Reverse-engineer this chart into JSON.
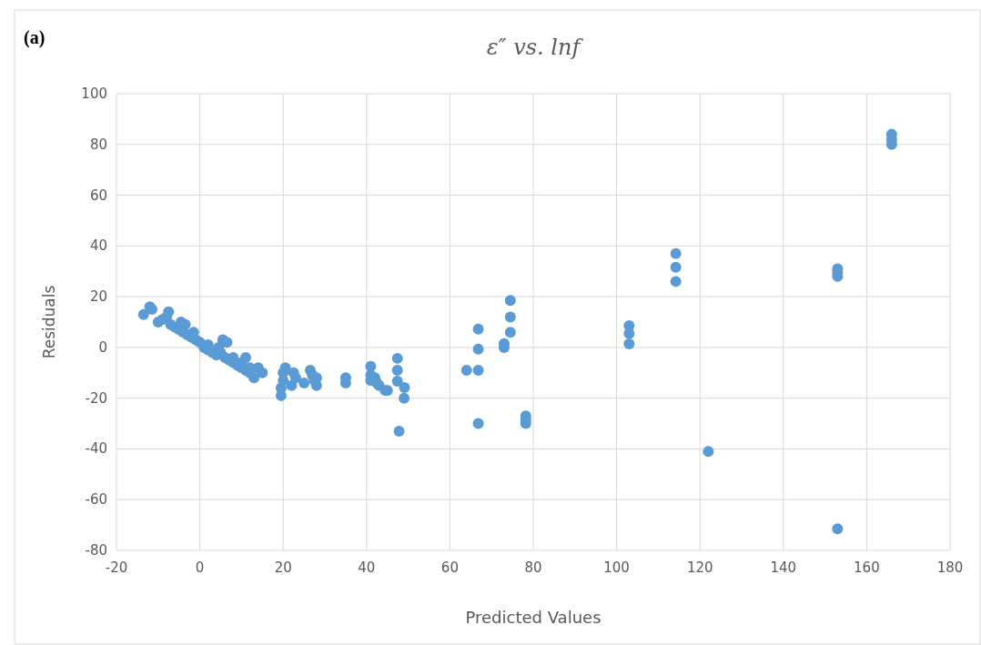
{
  "chart_data": {
    "type": "scatter",
    "title": "ε″ vs. lnf",
    "xlabel": "Predicted Values",
    "ylabel": "Residuals",
    "annotations": [
      "(a)"
    ],
    "xlim": [
      -20,
      180
    ],
    "xticks": [
      -20,
      0,
      20,
      40,
      60,
      80,
      100,
      120,
      140,
      160,
      180
    ],
    "ylim": [
      -80,
      100
    ],
    "yticks": [
      -80,
      -60,
      -40,
      -20,
      0,
      20,
      40,
      60,
      80,
      100
    ],
    "grid": true,
    "marker": "circle",
    "series": [
      {
        "color": "#5b9bd5",
        "x": [
          -13.5,
          -12,
          -11.5,
          -10,
          -9,
          -8,
          -7.5,
          -7,
          -6,
          -5,
          -4.5,
          -4,
          -3.5,
          -3,
          -2,
          -1.5,
          -1,
          0,
          1,
          2,
          2,
          3,
          4,
          4.5,
          5,
          5.5,
          6,
          6.5,
          7,
          8,
          8,
          9,
          10,
          10,
          11,
          11,
          12,
          12,
          13,
          14,
          15,
          19.5,
          19.5,
          20,
          20,
          20.5,
          22.5,
          23,
          22,
          25,
          26.5,
          27,
          27.5,
          28,
          28,
          35,
          35,
          41,
          41,
          41,
          42,
          42.5,
          43,
          44.5,
          45,
          47.4,
          47.4,
          47.4,
          49.1,
          49,
          47.8,
          64,
          66.8,
          66.8,
          66.8,
          66.8,
          73,
          73,
          74.5,
          74.5,
          74.5,
          78.2,
          78.2,
          78.2,
          103,
          103,
          103,
          114.2,
          114.2,
          114.2,
          122,
          153,
          153,
          153,
          153,
          166,
          166,
          166
        ],
        "values": [
          13,
          16,
          15,
          10,
          11,
          12,
          14,
          9,
          8,
          7,
          10,
          6,
          9,
          5,
          4,
          6,
          3,
          2,
          0,
          1,
          -1,
          -2,
          -3,
          0,
          -2,
          3,
          -4,
          2,
          -5,
          -4,
          -6,
          -7,
          -8,
          -6,
          -4,
          -9,
          -10,
          -8,
          -12,
          -8,
          -10,
          -19,
          -16,
          -13,
          -10,
          -8,
          -10,
          -12,
          -15,
          -14,
          -9,
          -11,
          -13,
          -15,
          -12,
          -12,
          -14,
          -7.5,
          -11,
          -13,
          -12,
          -14,
          -15,
          -17,
          -17,
          -4.3,
          -9,
          -13.3,
          -15.8,
          -20,
          -33,
          -9,
          -9,
          -0.7,
          7.2,
          -30,
          0,
          1.5,
          6,
          12,
          18.5,
          -27,
          -28.5,
          -30,
          8.6,
          5.4,
          1.4,
          37,
          31.6,
          26,
          -41,
          28,
          29.5,
          31,
          -71.5,
          80,
          82,
          84
        ]
      }
    ]
  }
}
